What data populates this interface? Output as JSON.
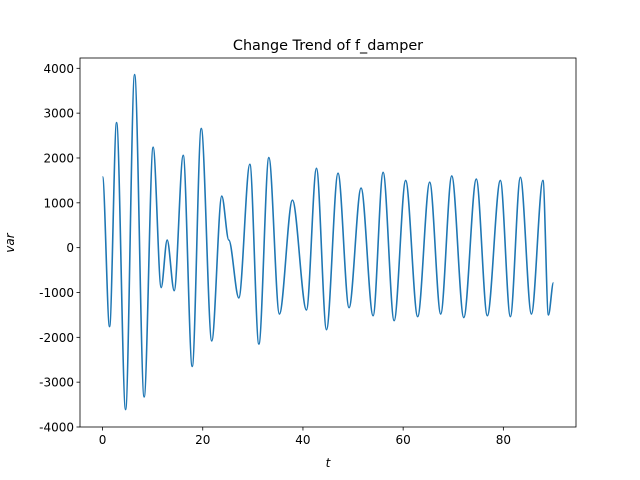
{
  "chart_data": {
    "type": "line",
    "title": "Change Trend of f_damper",
    "xlabel": "t",
    "ylabel": "var",
    "x": [
      0,
      1.4,
      2.8,
      4.6,
      6.4,
      8.3,
      10.1,
      11.7,
      12.9,
      14.3,
      16.1,
      17.9,
      19.7,
      21.8,
      23.8,
      25.2,
      27.2,
      29.4,
      31.2,
      33.2,
      35.3,
      37.9,
      40.7,
      42.7,
      44.7,
      47.0,
      49.2,
      51.6,
      54.0,
      56.0,
      58.2,
      60.5,
      62.9,
      65.3,
      67.5,
      69.7,
      72.1,
      74.6,
      76.8,
      79.4,
      81.4,
      83.4,
      85.6,
      87.9,
      89.0,
      90.0
    ],
    "series": [
      {
        "name": "f_damper",
        "color": "#1f77b4",
        "values": [
          1580,
          -1760,
          2790,
          -3610,
          3860,
          -3330,
          2240,
          -890,
          170,
          -960,
          2060,
          -2650,
          2660,
          -2080,
          1150,
          170,
          -1120,
          1860,
          -2150,
          2010,
          -1480,
          1060,
          -1390,
          1770,
          -1830,
          1660,
          -1340,
          1330,
          -1520,
          1680,
          -1630,
          1500,
          -1540,
          1460,
          -1480,
          1600,
          -1560,
          1530,
          -1520,
          1500,
          -1540,
          1570,
          -1480,
          1500,
          -1500,
          -780
        ]
      }
    ],
    "xlim": [
      -4.5,
      94.5
    ],
    "ylim": [
      -4000,
      4230
    ],
    "xticks": [
      0,
      20,
      40,
      60,
      80
    ],
    "yticks": [
      -4000,
      -3000,
      -2000,
      -1000,
      0,
      1000,
      2000,
      3000,
      4000
    ]
  }
}
